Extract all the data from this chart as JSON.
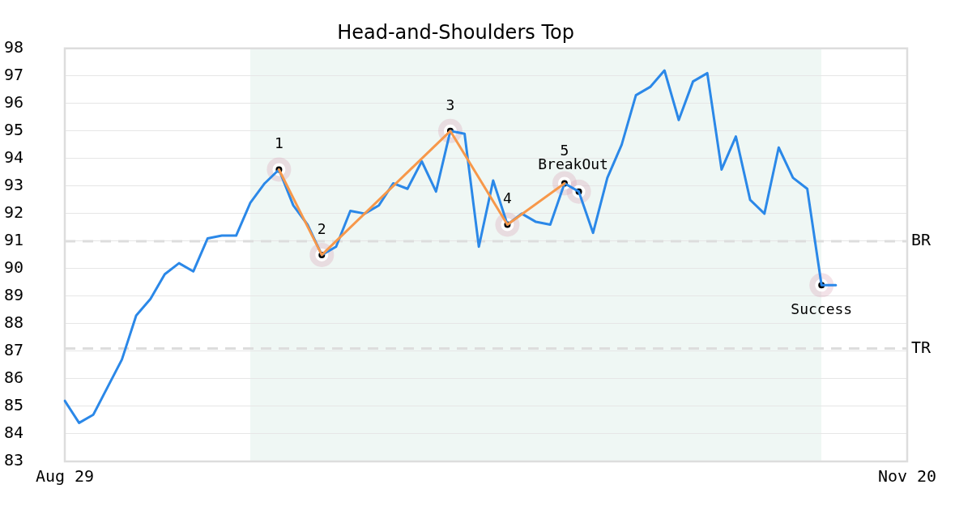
{
  "chart_data": {
    "type": "line",
    "title": "Head-and-Shoulders Top",
    "categories": [
      "Aug 29",
      null,
      null,
      null,
      null,
      null,
      null,
      null,
      null,
      null,
      null,
      null,
      null,
      null,
      null,
      null,
      null,
      null,
      null,
      null,
      null,
      null,
      null,
      null,
      null,
      null,
      null,
      null,
      null,
      null,
      null,
      null,
      null,
      null,
      null,
      null,
      null,
      null,
      null,
      null,
      null,
      null,
      null,
      null,
      null,
      null,
      null,
      null,
      null,
      null,
      null,
      null,
      null,
      null,
      null,
      null,
      null,
      null,
      null,
      "Nov 20"
    ],
    "ylim": [
      83,
      98
    ],
    "yticks": [
      83,
      84,
      85,
      86,
      87,
      88,
      89,
      90,
      91,
      92,
      93,
      94,
      95,
      96,
      97,
      98
    ],
    "grid": "y",
    "series": [
      {
        "color": "#2b88e8",
        "values": [
          85.2,
          84.4,
          84.7,
          85.7,
          86.7,
          88.3,
          88.9,
          89.8,
          90.2,
          89.9,
          91.1,
          91.2,
          91.2,
          92.4,
          93.1,
          93.6,
          92.3,
          91.6,
          90.5,
          90.8,
          92.1,
          92.0,
          92.3,
          93.1,
          92.9,
          93.9,
          92.8,
          95.0,
          94.9,
          90.8,
          93.2,
          91.6,
          92.0,
          91.7,
          91.6,
          93.1,
          92.8,
          91.3,
          93.3,
          94.5,
          96.3,
          96.6,
          97.2,
          95.4,
          96.8,
          97.1,
          93.6,
          94.8,
          92.5,
          92.0,
          94.4,
          93.3,
          92.9,
          89.4,
          89.4,
          null,
          null,
          null,
          null,
          null
        ]
      },
      {
        "color": "#f7984a",
        "values": [
          null,
          null,
          null,
          null,
          null,
          null,
          null,
          null,
          null,
          null,
          null,
          null,
          null,
          null,
          null,
          93.6,
          null,
          null,
          90.5,
          null,
          null,
          null,
          null,
          null,
          null,
          null,
          null,
          95.0,
          null,
          null,
          null,
          91.6,
          null,
          null,
          null,
          93.1,
          null,
          null,
          null,
          null,
          null,
          null,
          null,
          null,
          null,
          null,
          null,
          null,
          null,
          null,
          null,
          null,
          null,
          null,
          null,
          null,
          null,
          null,
          null,
          null
        ]
      },
      {
        "type": "scatter",
        "color": "#000000",
        "marker": "circle",
        "values": [
          null,
          null,
          null,
          null,
          null,
          null,
          null,
          null,
          null,
          null,
          null,
          null,
          null,
          null,
          null,
          93.6,
          null,
          null,
          90.5,
          null,
          null,
          null,
          null,
          null,
          null,
          null,
          null,
          95.0,
          null,
          null,
          null,
          91.6,
          null,
          null,
          null,
          93.1,
          92.8,
          null,
          null,
          null,
          null,
          null,
          null,
          null,
          null,
          null,
          null,
          null,
          null,
          null,
          null,
          null,
          null,
          89.4,
          null,
          null,
          null,
          null,
          null,
          null
        ]
      }
    ],
    "ref_lines": [
      {
        "axis": "y",
        "value": 91,
        "label": "BR",
        "color": "#dddddd",
        "line_style": "dashed"
      },
      {
        "axis": "y",
        "value": 87.1,
        "label": "TR",
        "color": "#dddddd",
        "line_style": "dashed"
      }
    ],
    "annotations": [
      {
        "text": "1",
        "y": 93.6
      },
      {
        "text": "2",
        "y": 90.5
      },
      {
        "text": "3",
        "y": 95.0
      },
      {
        "text": "4",
        "y": 91.6
      },
      {
        "text": "5",
        "y": 93.1
      },
      {
        "text": "BreakOut",
        "y": 92.8
      },
      {
        "text": "Success",
        "y": 89.4
      }
    ]
  }
}
